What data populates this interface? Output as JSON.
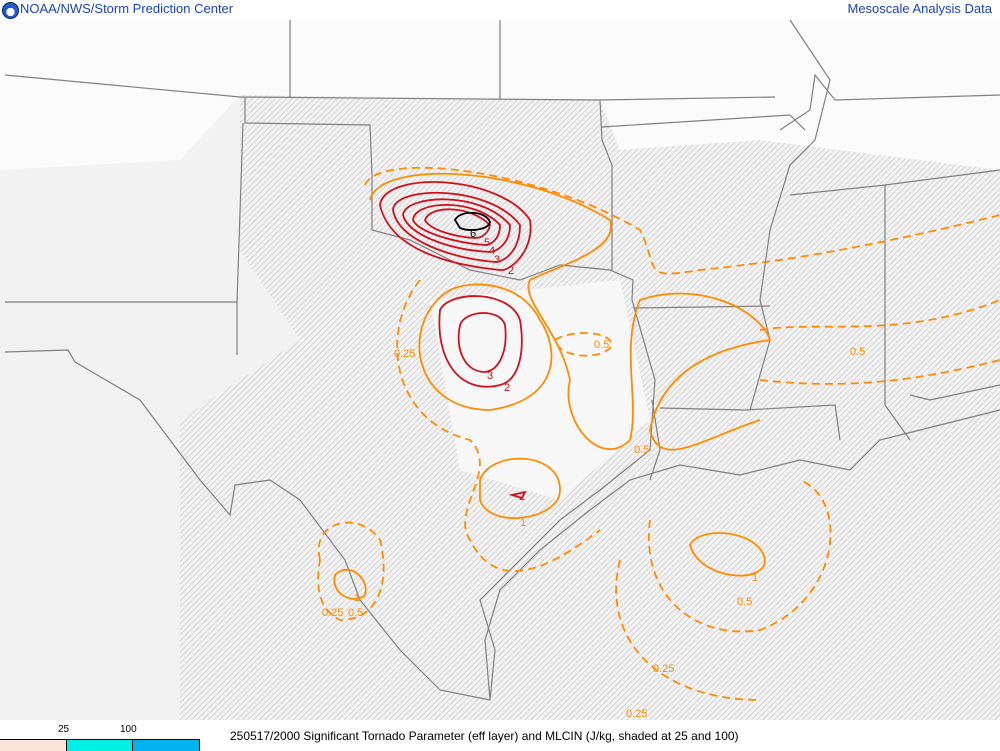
{
  "header": {
    "left_title": "NOAA/NWS/Storm Prediction Center",
    "right_title": "Mesoscale Analysis Data",
    "logo_text": "NOAA"
  },
  "caption": "250517/2000 Significant Tornado Parameter (eff layer) and MLCIN (J/kg, shaded at 25 and 100)",
  "legend": {
    "ticks": [
      "25",
      "100"
    ],
    "colors": [
      "#fce4dc",
      "#00f0e8",
      "#00b4ec"
    ]
  },
  "colors": {
    "stp_high": "#d0101c",
    "stp_low": "#ff8c00",
    "border": "#808080",
    "hatch": "#b8b8b8"
  },
  "contour_labels": [
    {
      "text": "6",
      "color": "#000000"
    },
    {
      "text": "5",
      "color": "#d0101c"
    },
    {
      "text": "4",
      "color": "#d0101c"
    },
    {
      "text": "3",
      "color": "#d0101c"
    },
    {
      "text": "2",
      "color": "#d0101c"
    },
    {
      "text": "3",
      "color": "#d0101c"
    },
    {
      "text": "2",
      "color": "#d0101c"
    },
    {
      "text": "0.5",
      "color": "#ff8c00"
    },
    {
      "text": "0.25",
      "color": "#ff8c00"
    },
    {
      "text": "0.5",
      "color": "#ff8c00"
    },
    {
      "text": "2",
      "color": "#d0101c"
    },
    {
      "text": "1",
      "color": "#ff8c00"
    },
    {
      "text": "0.5",
      "color": "#ff8c00"
    },
    {
      "text": "1",
      "color": "#ff8c00"
    },
    {
      "text": "0.25",
      "color": "#ff8c00"
    },
    {
      "text": "0.5",
      "color": "#ff8c00"
    },
    {
      "text": "1",
      "color": "#ff8c00"
    },
    {
      "text": "0.5",
      "color": "#ff8c00"
    },
    {
      "text": "0.25",
      "color": "#ff8c00"
    },
    {
      "text": "0.25",
      "color": "#ff8c00"
    }
  ]
}
